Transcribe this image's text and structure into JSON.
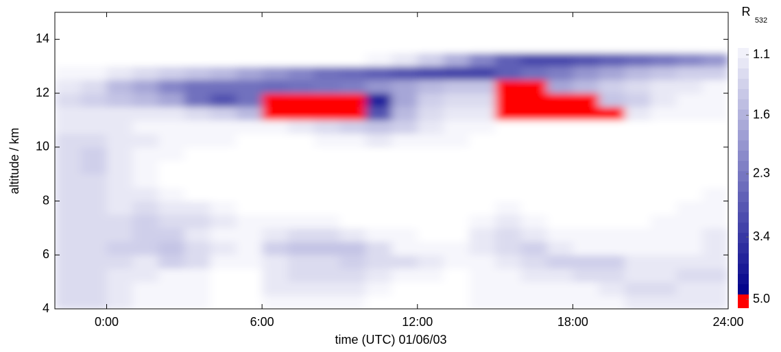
{
  "chart_data": {
    "type": "heatmap",
    "x_label": "time (UTC) 01/06/03",
    "y_label": "altitude / km",
    "xlim": [
      -2,
      24
    ],
    "ylim": [
      4,
      15
    ],
    "xticks": [
      {
        "value": 0,
        "label": "0:00"
      },
      {
        "value": 6,
        "label": "6:00"
      },
      {
        "value": 12,
        "label": "12:00"
      },
      {
        "value": 18,
        "label": "18:00"
      },
      {
        "value": 24,
        "label": "24:00"
      }
    ],
    "yticks": [
      4,
      6,
      8,
      10,
      12,
      14
    ],
    "x_bins": [
      -2,
      -1,
      0,
      1,
      2,
      3,
      4,
      5,
      6,
      7,
      8,
      9,
      10,
      11,
      12,
      13,
      14,
      15,
      16,
      17,
      18,
      19,
      20,
      21,
      22,
      23,
      24
    ],
    "y_bins": [
      4,
      4.5,
      5,
      5.5,
      6,
      6.5,
      7,
      7.5,
      8,
      8.5,
      9,
      9.5,
      10,
      10.5,
      11,
      11.5,
      12,
      12.5,
      13,
      13.5,
      14,
      14.5,
      15
    ],
    "z": [
      [
        1.3,
        1.3,
        1.2,
        1.1,
        1.1,
        1.1,
        1.0,
        1.0,
        1.1,
        1.1,
        1.1,
        1.1,
        1.0,
        1.0,
        1.0,
        1.0,
        1.1,
        1.1,
        1.1,
        1.1,
        1.1,
        1.1,
        1.2,
        1.2,
        1.2,
        1.2
      ],
      [
        1.3,
        1.3,
        1.2,
        1.1,
        1.1,
        1.1,
        1.0,
        1.0,
        1.2,
        1.2,
        1.2,
        1.2,
        1.1,
        1.0,
        1.0,
        1.0,
        1.1,
        1.1,
        1.1,
        1.1,
        1.1,
        1.2,
        1.3,
        1.3,
        1.2,
        1.2
      ],
      [
        1.3,
        1.3,
        1.2,
        1.2,
        1.1,
        1.1,
        1.0,
        1.0,
        1.2,
        1.3,
        1.3,
        1.3,
        1.2,
        1.1,
        1.1,
        1.0,
        1.1,
        1.1,
        1.2,
        1.2,
        1.3,
        1.3,
        1.2,
        1.2,
        1.3,
        1.3
      ],
      [
        1.3,
        1.3,
        1.3,
        1.2,
        1.4,
        1.3,
        1.1,
        1.1,
        1.2,
        1.3,
        1.3,
        1.4,
        1.3,
        1.3,
        1.2,
        1.1,
        1.1,
        1.2,
        1.3,
        1.4,
        1.4,
        1.4,
        1.2,
        1.2,
        1.2,
        1.2
      ],
      [
        1.3,
        1.3,
        1.4,
        1.4,
        1.5,
        1.3,
        1.2,
        1.1,
        1.4,
        1.5,
        1.5,
        1.5,
        1.3,
        1.1,
        1.1,
        1.1,
        1.2,
        1.3,
        1.4,
        1.2,
        1.1,
        1.1,
        1.1,
        1.1,
        1.1,
        1.2
      ],
      [
        1.3,
        1.3,
        1.3,
        1.4,
        1.4,
        1.2,
        1.1,
        1.1,
        1.2,
        1.3,
        1.3,
        1.2,
        1.1,
        1.1,
        1.0,
        1.0,
        1.2,
        1.3,
        1.2,
        1.1,
        1.1,
        1.1,
        1.1,
        1.1,
        1.1,
        1.2
      ],
      [
        1.3,
        1.3,
        1.3,
        1.4,
        1.3,
        1.3,
        1.2,
        1.1,
        1.1,
        1.1,
        1.1,
        1.0,
        1.0,
        1.0,
        1.0,
        1.0,
        1.1,
        1.2,
        1.1,
        1.0,
        1.0,
        1.0,
        1.0,
        1.1,
        1.1,
        1.1
      ],
      [
        1.3,
        1.3,
        1.2,
        1.3,
        1.2,
        1.2,
        1.1,
        1.0,
        1.0,
        1.0,
        1.0,
        1.0,
        1.0,
        1.0,
        1.0,
        1.0,
        1.0,
        1.1,
        1.0,
        1.0,
        1.0,
        1.0,
        1.0,
        1.0,
        1.1,
        1.1
      ],
      [
        1.3,
        1.3,
        1.2,
        1.2,
        1.1,
        1.0,
        1.0,
        1.0,
        1.0,
        1.0,
        1.0,
        1.0,
        1.0,
        1.0,
        1.0,
        1.0,
        1.0,
        1.0,
        1.0,
        1.0,
        1.0,
        1.0,
        1.0,
        1.0,
        1.0,
        1.1
      ],
      [
        1.3,
        1.3,
        1.2,
        1.1,
        1.0,
        1.0,
        1.0,
        1.0,
        1.0,
        1.0,
        1.0,
        1.0,
        1.0,
        1.0,
        1.0,
        1.0,
        1.0,
        1.0,
        1.0,
        1.0,
        1.0,
        1.0,
        1.0,
        1.0,
        1.0,
        1.0
      ],
      [
        1.3,
        1.4,
        1.2,
        1.1,
        1.0,
        1.0,
        1.0,
        1.0,
        1.0,
        1.0,
        1.0,
        1.0,
        1.0,
        1.0,
        1.0,
        1.0,
        1.0,
        1.0,
        1.0,
        1.0,
        1.0,
        1.0,
        1.0,
        1.0,
        1.0,
        1.0
      ],
      [
        1.3,
        1.4,
        1.2,
        1.1,
        1.1,
        1.0,
        1.0,
        1.0,
        1.0,
        1.0,
        1.0,
        1.0,
        1.0,
        1.0,
        1.0,
        1.0,
        1.0,
        1.0,
        1.0,
        1.0,
        1.0,
        1.0,
        1.0,
        1.0,
        1.0,
        1.0
      ],
      [
        1.3,
        1.3,
        1.2,
        1.2,
        1.1,
        1.1,
        1.1,
        1.0,
        1.0,
        1.0,
        1.1,
        1.1,
        1.2,
        1.1,
        1.1,
        1.1,
        1.0,
        1.0,
        1.0,
        1.0,
        1.0,
        1.0,
        1.0,
        1.0,
        1.0,
        1.0
      ],
      [
        1.2,
        1.2,
        1.2,
        1.1,
        1.1,
        1.1,
        1.1,
        1.1,
        1.1,
        1.2,
        1.3,
        1.4,
        1.5,
        1.4,
        1.2,
        1.1,
        1.1,
        1.0,
        1.0,
        1.0,
        1.0,
        1.0,
        1.0,
        1.0,
        1.0,
        1.0
      ],
      [
        1.2,
        1.2,
        1.2,
        1.2,
        1.2,
        1.3,
        1.4,
        1.6,
        7,
        7,
        7,
        6,
        3,
        1.6,
        1.3,
        1.2,
        1.2,
        7,
        7,
        7,
        7,
        6,
        1.2,
        1.1,
        1.1,
        1.1
      ],
      [
        1.3,
        1.4,
        1.5,
        1.6,
        1.8,
        2.5,
        3,
        2.5,
        7,
        7,
        7,
        6,
        4,
        1.8,
        1.4,
        1.3,
        1.3,
        6,
        7,
        7,
        7,
        1.5,
        1.4,
        1.2,
        1.1,
        1.1
      ],
      [
        1.2,
        1.3,
        1.6,
        1.8,
        2.2,
        2.5,
        2.5,
        2.5,
        2.6,
        2.5,
        2.4,
        2.3,
        2.0,
        1.8,
        1.6,
        1.5,
        1.5,
        7,
        7,
        1.8,
        1.6,
        1.4,
        1.3,
        1.2,
        1.2,
        1.1
      ],
      [
        1.1,
        1.1,
        1.2,
        1.3,
        1.4,
        1.5,
        1.6,
        1.8,
        2,
        2.2,
        2.5,
        2.6,
        2.8,
        3,
        3.2,
        3.3,
        3.3,
        2.8,
        2.5,
        2.3,
        2.0,
        1.8,
        1.6,
        1.5,
        1.4,
        1.4
      ],
      [
        1.0,
        1.0,
        1.0,
        1.0,
        1.0,
        1.0,
        1.0,
        1.0,
        1.0,
        1.0,
        1.0,
        1.0,
        1.1,
        1.2,
        1.4,
        1.7,
        2.2,
        2.8,
        3.2,
        3.2,
        3.0,
        2.8,
        2.6,
        2.4,
        2.2,
        2.0
      ],
      [
        1.0,
        1.0,
        1.0,
        1.0,
        1.0,
        1.0,
        1.0,
        1.0,
        1.0,
        1.0,
        1.0,
        1.0,
        1.0,
        1.0,
        1.0,
        1.0,
        1.0,
        1.0,
        1.0,
        1.0,
        1.0,
        1.0,
        1.0,
        1.0,
        1.0,
        1.0
      ],
      [
        1.0,
        1.0,
        1.0,
        1.0,
        1.0,
        1.0,
        1.0,
        1.0,
        1.0,
        1.0,
        1.0,
        1.0,
        1.0,
        1.0,
        1.0,
        1.0,
        1.0,
        1.0,
        1.0,
        1.0,
        1.0,
        1.0,
        1.0,
        1.0,
        1.0,
        1.0
      ],
      [
        1.0,
        1.0,
        1.0,
        1.0,
        1.0,
        1.0,
        1.0,
        1.0,
        1.0,
        1.0,
        1.0,
        1.0,
        1.0,
        1.0,
        1.0,
        1.0,
        1.0,
        1.0,
        1.0,
        1.0,
        1.0,
        1.0,
        1.0,
        1.0,
        1.0,
        1.0
      ]
    ],
    "colorbar": {
      "title": "R",
      "subscript": "532",
      "scale": "log",
      "lim": [
        1.1,
        5
      ],
      "ticks": [
        1.1,
        1.6,
        2.3,
        3.4,
        {
          "value": 5,
          "label": "5.0"
        }
      ],
      "low_color": "#f6f6fc",
      "high_color": "#00008a",
      "over_color": "#ff0000"
    }
  }
}
